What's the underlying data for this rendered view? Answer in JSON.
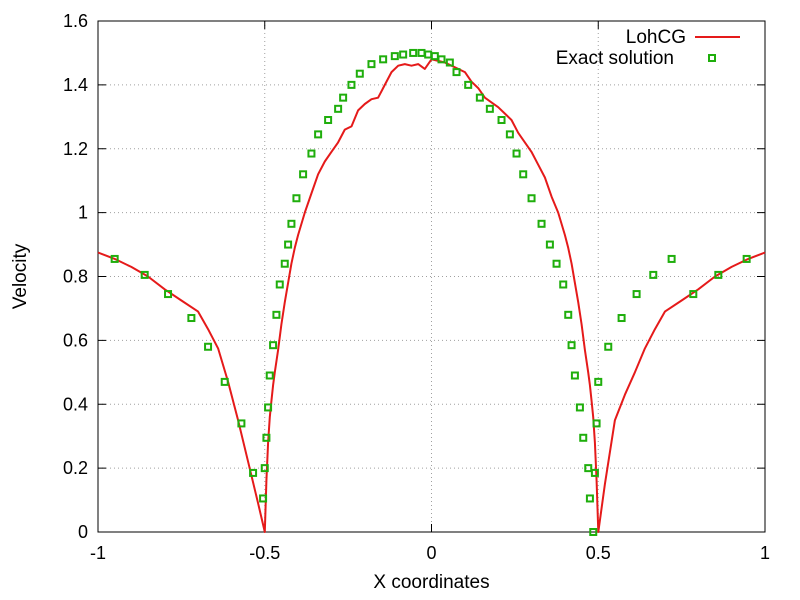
{
  "chart_data": {
    "type": "line",
    "xlabel": "X coordinates",
    "ylabel": "Velocity",
    "xlim": [
      -1,
      1
    ],
    "ylim": [
      0,
      1.6
    ],
    "x_ticks": [
      "-1",
      "-0.5",
      "0",
      "0.5",
      "1"
    ],
    "y_ticks": [
      "0",
      "0.2",
      "0.4",
      "0.6",
      "0.8",
      "1",
      "1.2",
      "1.4",
      "1.6"
    ],
    "x_tick_values": [
      -1,
      -0.5,
      0,
      0.5,
      1
    ],
    "y_tick_values": [
      0,
      0.2,
      0.4,
      0.6,
      0.8,
      1,
      1.2,
      1.4,
      1.6
    ],
    "grid": true,
    "legend_position": "top-right",
    "series": [
      {
        "name": "LohCG",
        "style": "line",
        "color": "#e51a1a",
        "x": [
          -1.0,
          -0.95,
          -0.9,
          -0.85,
          -0.8,
          -0.75,
          -0.7,
          -0.67,
          -0.64,
          -0.61,
          -0.58,
          -0.55,
          -0.52,
          -0.5,
          -0.495,
          -0.49,
          -0.485,
          -0.48,
          -0.475,
          -0.47,
          -0.46,
          -0.45,
          -0.44,
          -0.43,
          -0.42,
          -0.41,
          -0.4,
          -0.38,
          -0.36,
          -0.34,
          -0.32,
          -0.3,
          -0.28,
          -0.26,
          -0.24,
          -0.22,
          -0.2,
          -0.18,
          -0.16,
          -0.14,
          -0.12,
          -0.1,
          -0.08,
          -0.06,
          -0.04,
          -0.02,
          0.0,
          0.02,
          0.04,
          0.06,
          0.08,
          0.1,
          0.12,
          0.14,
          0.16,
          0.18,
          0.2,
          0.22,
          0.24,
          0.26,
          0.28,
          0.3,
          0.32,
          0.34,
          0.36,
          0.38,
          0.4,
          0.41,
          0.42,
          0.43,
          0.44,
          0.45,
          0.46,
          0.47,
          0.475,
          0.48,
          0.485,
          0.49,
          0.495,
          0.5,
          0.52,
          0.55,
          0.58,
          0.61,
          0.64,
          0.67,
          0.7,
          0.75,
          0.8,
          0.85,
          0.9,
          0.95,
          1.0
        ],
        "y": [
          0.875,
          0.855,
          0.83,
          0.8,
          0.76,
          0.725,
          0.69,
          0.635,
          0.575,
          0.47,
          0.35,
          0.22,
          0.09,
          0.0,
          0.16,
          0.28,
          0.36,
          0.41,
          0.46,
          0.5,
          0.57,
          0.65,
          0.72,
          0.78,
          0.84,
          0.89,
          0.93,
          1.0,
          1.06,
          1.12,
          1.16,
          1.19,
          1.22,
          1.26,
          1.27,
          1.32,
          1.34,
          1.355,
          1.36,
          1.4,
          1.44,
          1.46,
          1.465,
          1.46,
          1.465,
          1.45,
          1.48,
          1.475,
          1.47,
          1.46,
          1.45,
          1.44,
          1.41,
          1.39,
          1.36,
          1.345,
          1.33,
          1.31,
          1.29,
          1.25,
          1.22,
          1.19,
          1.15,
          1.11,
          1.05,
          1.0,
          0.93,
          0.89,
          0.84,
          0.78,
          0.72,
          0.65,
          0.57,
          0.5,
          0.46,
          0.41,
          0.36,
          0.28,
          0.16,
          0.0,
          0.15,
          0.35,
          0.43,
          0.5,
          0.575,
          0.635,
          0.69,
          0.725,
          0.76,
          0.8,
          0.83,
          0.855,
          0.875
        ]
      },
      {
        "name": "Exact solution",
        "style": "points",
        "color": "#1fae0c",
        "x": [
          -0.95,
          -0.86,
          -0.79,
          -0.72,
          -0.67,
          -0.62,
          -0.57,
          -0.535,
          -0.505,
          -0.5,
          -0.495,
          -0.49,
          -0.485,
          -0.475,
          -0.465,
          -0.455,
          -0.44,
          -0.43,
          -0.42,
          -0.405,
          -0.385,
          -0.36,
          -0.34,
          -0.31,
          -0.28,
          -0.265,
          -0.24,
          -0.215,
          -0.18,
          -0.145,
          -0.11,
          -0.085,
          -0.055,
          -0.03,
          -0.01,
          0.01,
          0.03,
          0.055,
          0.075,
          0.11,
          0.145,
          0.175,
          0.21,
          0.235,
          0.255,
          0.275,
          0.3,
          0.33,
          0.355,
          0.375,
          0.395,
          0.41,
          0.42,
          0.43,
          0.445,
          0.455,
          0.47,
          0.475,
          0.485,
          0.49,
          0.495,
          0.5,
          0.53,
          0.57,
          0.615,
          0.665,
          0.72,
          0.785,
          0.86,
          0.945
        ],
        "y": [
          0.855,
          0.805,
          0.745,
          0.67,
          0.58,
          0.47,
          0.34,
          0.185,
          0.105,
          0.2,
          0.295,
          0.39,
          0.49,
          0.585,
          0.68,
          0.775,
          0.84,
          0.9,
          0.965,
          1.045,
          1.12,
          1.185,
          1.245,
          1.29,
          1.325,
          1.36,
          1.4,
          1.435,
          1.465,
          1.48,
          1.49,
          1.495,
          1.5,
          1.5,
          1.495,
          1.49,
          1.48,
          1.47,
          1.44,
          1.4,
          1.36,
          1.325,
          1.29,
          1.245,
          1.185,
          1.12,
          1.045,
          0.965,
          0.9,
          0.84,
          0.775,
          0.68,
          0.585,
          0.49,
          0.39,
          0.295,
          0.2,
          0.105,
          0.0,
          0.185,
          0.34,
          0.47,
          0.58,
          0.67,
          0.745,
          0.805,
          0.855,
          0.745,
          0.805,
          0.855
        ],
        "note_pairs": true
      }
    ]
  }
}
